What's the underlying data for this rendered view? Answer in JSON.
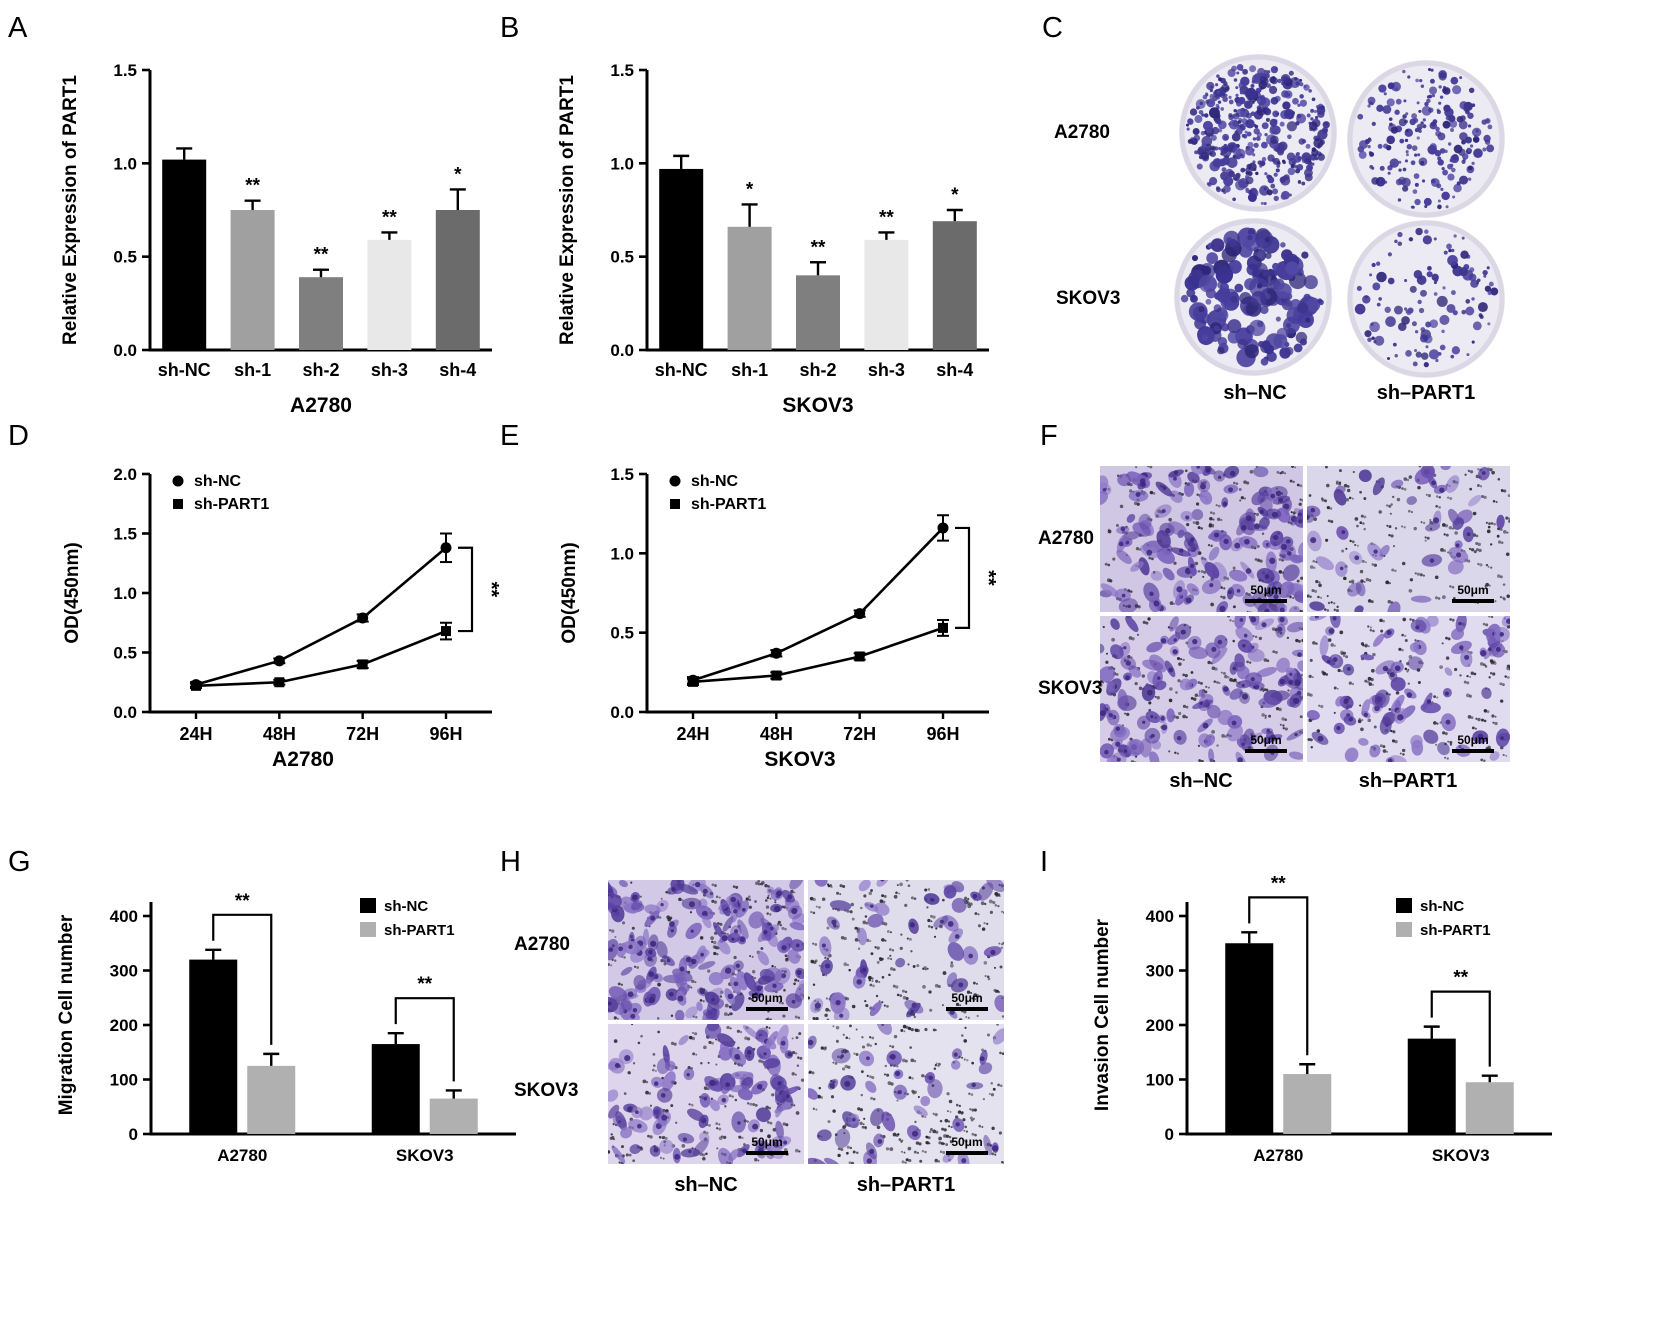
{
  "panel_labels": {
    "A": "A",
    "B": "B",
    "C": "C",
    "D": "D",
    "E": "E",
    "F": "F",
    "G": "G",
    "H": "H",
    "I": "I"
  },
  "chart_data": [
    {
      "id": "A",
      "type": "bar",
      "title": "A2780",
      "ylabel": "Relative Expression of PART1",
      "categories": [
        "sh-NC",
        "sh-1",
        "sh-2",
        "sh-3",
        "sh-4"
      ],
      "values": [
        1.02,
        0.75,
        0.39,
        0.59,
        0.75
      ],
      "errors": [
        0.06,
        0.05,
        0.04,
        0.04,
        0.11
      ],
      "sig": [
        "",
        "**",
        "**",
        "**",
        "*"
      ],
      "bar_colors": [
        "#000000",
        "#a0a0a0",
        "#7f7f7f",
        "#e8e8e8",
        "#6b6b6b"
      ],
      "ylim": [
        0,
        1.5
      ],
      "yticks": [
        0,
        0.5,
        1,
        1.5
      ]
    },
    {
      "id": "B",
      "type": "bar",
      "title": "SKOV3",
      "ylabel": "Relative Expression of PART1",
      "categories": [
        "sh-NC",
        "sh-1",
        "sh-2",
        "sh-3",
        "sh-4"
      ],
      "values": [
        0.97,
        0.66,
        0.4,
        0.59,
        0.69
      ],
      "errors": [
        0.07,
        0.12,
        0.07,
        0.04,
        0.06
      ],
      "sig": [
        "",
        "*",
        "**",
        "**",
        "*"
      ],
      "bar_colors": [
        "#000000",
        "#a0a0a0",
        "#7f7f7f",
        "#e8e8e8",
        "#6b6b6b"
      ],
      "ylim": [
        0,
        1.5
      ],
      "yticks": [
        0,
        0.5,
        1,
        1.5
      ]
    },
    {
      "id": "D",
      "type": "line",
      "title": "A2780",
      "ylabel": "OD(450nm)",
      "x": [
        "24H",
        "48H",
        "72H",
        "96H"
      ],
      "series": [
        {
          "name": "sh-NC",
          "marker": "circle",
          "values": [
            0.23,
            0.43,
            0.79,
            1.38
          ],
          "errors": [
            0.02,
            0.02,
            0.03,
            0.12
          ]
        },
        {
          "name": "sh-PART1",
          "marker": "square",
          "values": [
            0.22,
            0.25,
            0.4,
            0.68
          ],
          "errors": [
            0.02,
            0.02,
            0.03,
            0.07
          ]
        }
      ],
      "sig": "**",
      "ylim": [
        0,
        2
      ],
      "yticks": [
        0,
        0.5,
        1,
        1.5,
        2
      ],
      "legend_position": "top-left"
    },
    {
      "id": "E",
      "type": "line",
      "title": "SKOV3",
      "ylabel": "OD(450nm)",
      "x": [
        "24H",
        "48H",
        "72H",
        "96H"
      ],
      "series": [
        {
          "name": "sh-NC",
          "marker": "circle",
          "values": [
            0.2,
            0.37,
            0.62,
            1.16
          ],
          "errors": [
            0.02,
            0.02,
            0.02,
            0.08
          ]
        },
        {
          "name": "sh-PART1",
          "marker": "square",
          "values": [
            0.19,
            0.23,
            0.35,
            0.53
          ],
          "errors": [
            0.02,
            0.02,
            0.02,
            0.05
          ]
        }
      ],
      "sig": "**",
      "ylim": [
        0,
        1.5
      ],
      "yticks": [
        0,
        0.5,
        1,
        1.5
      ],
      "legend_position": "top-left"
    },
    {
      "id": "G",
      "type": "grouped_bar",
      "ylabel": "Migration Cell number",
      "categories": [
        "A2780",
        "SKOV3"
      ],
      "series": [
        {
          "name": "sh-NC",
          "color": "#000000",
          "values": [
            320,
            165
          ],
          "errors": [
            18,
            20
          ]
        },
        {
          "name": "sh-PART1",
          "color": "#b0b0b0",
          "values": [
            125,
            65
          ],
          "errors": [
            22,
            15
          ]
        }
      ],
      "sig": [
        "**",
        "**"
      ],
      "ylim": [
        0,
        400
      ],
      "yticks": [
        0,
        100,
        200,
        300,
        400
      ],
      "legend_position": "top-right"
    },
    {
      "id": "I",
      "type": "grouped_bar",
      "ylabel": "Invasion Cell number",
      "categories": [
        "A2780",
        "SKOV3"
      ],
      "series": [
        {
          "name": "sh-NC",
          "color": "#000000",
          "values": [
            350,
            175
          ],
          "errors": [
            20,
            22
          ]
        },
        {
          "name": "sh-PART1",
          "color": "#b0b0b0",
          "values": [
            110,
            95
          ],
          "errors": [
            18,
            12
          ]
        }
      ],
      "sig": [
        "**",
        "**"
      ],
      "ylim": [
        0,
        400
      ],
      "yticks": [
        0,
        100,
        200,
        300,
        400
      ],
      "legend_position": "top-right"
    }
  ],
  "image_panels": {
    "C": {
      "row_labels": [
        "A2780",
        "SKOV3"
      ],
      "col_labels": [
        "sh–NC",
        "sh–PART1"
      ],
      "colony_color": "#3a3190",
      "wells": [
        {
          "colonies": 430,
          "rmin": 1.5,
          "rmax": 5.5,
          "bias": 2.0
        },
        {
          "colonies": 210,
          "rmin": 1.5,
          "rmax": 5.0,
          "bias": 2.2
        },
        {
          "colonies": 170,
          "rmin": 2.5,
          "rmax": 10,
          "bias": 1.6
        },
        {
          "colonies": 120,
          "rmin": 1.5,
          "rmax": 5.5,
          "bias": 2.0
        }
      ]
    },
    "F": {
      "row_labels": [
        "A2780",
        "SKOV3"
      ],
      "col_labels": [
        "sh–NC",
        "sh–PART1"
      ],
      "scale_bar_label": "50μm",
      "images": [
        {
          "cells": 135,
          "specks": 150,
          "bg": "#cfc7e3"
        },
        {
          "cells": 40,
          "specks": 160,
          "bg": "#dbd7ea"
        },
        {
          "cells": 115,
          "specks": 140,
          "bg": "#d5cde7"
        },
        {
          "cells": 75,
          "specks": 140,
          "bg": "#e0dbef"
        }
      ]
    },
    "H": {
      "row_labels": [
        "A2780",
        "SKOV3"
      ],
      "col_labels": [
        "sh–NC",
        "sh–PART1"
      ],
      "scale_bar_label": "50μm",
      "images": [
        {
          "cells": 140,
          "specks": 150,
          "bg": "#d1c9e5"
        },
        {
          "cells": 42,
          "specks": 170,
          "bg": "#dfdcec"
        },
        {
          "cells": 90,
          "specks": 150,
          "bg": "#ddd5ec"
        },
        {
          "cells": 38,
          "specks": 180,
          "bg": "#e4e2ee"
        }
      ]
    }
  }
}
